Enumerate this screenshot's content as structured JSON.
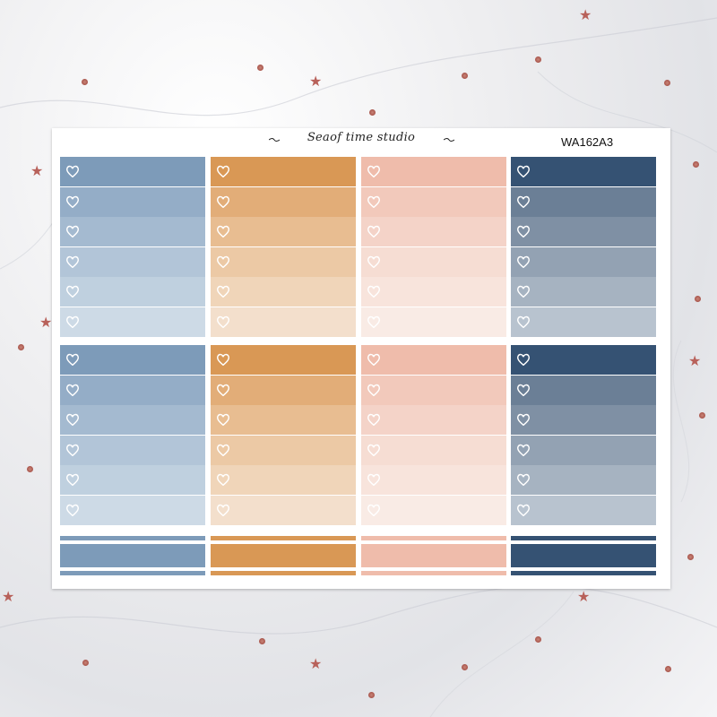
{
  "sheet": {
    "brand": "Seaof time studio",
    "code": "WA162A3"
  },
  "columns": [
    {
      "name": "blue",
      "colors": [
        "#7d9bb9",
        "#94adc7",
        "#a4bad0",
        "#b2c5d8",
        "#bfd0df",
        "#cddae6"
      ]
    },
    {
      "name": "orange",
      "colors": [
        "#d99855",
        "#e2ad78",
        "#e8bd91",
        "#ecc9a5",
        "#f0d5b9",
        "#f3dfcc"
      ]
    },
    {
      "name": "pink",
      "colors": [
        "#efbcab",
        "#f2c9bb",
        "#f4d3c8",
        "#f6ddd3",
        "#f8e4dc",
        "#f9ebe5"
      ]
    },
    {
      "name": "navy",
      "colors": [
        "#355273",
        "#6b7f96",
        "#7f90a4",
        "#93a2b3",
        "#a6b3c1",
        "#b8c3cf"
      ]
    }
  ],
  "heart_icon": "heart-outline-icon",
  "background": "white-marble-with-rose-gold-glitter"
}
